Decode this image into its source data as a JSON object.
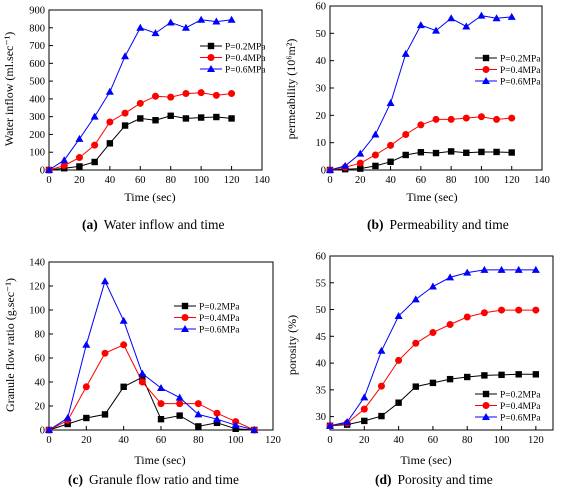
{
  "colors": {
    "s1": "#000000",
    "s2": "#ff0000",
    "s3": "#0000ff"
  },
  "chart_data": [
    {
      "type": "line",
      "panel": "a",
      "caption_label": "(a)",
      "caption_text": "Water inflow and time",
      "xlabel": "Time (sec)",
      "ylabel": "Water inflow (ml.sec⁻¹)",
      "xlim": [
        0,
        140
      ],
      "ylim": [
        0,
        900
      ],
      "xticks": [
        0,
        20,
        40,
        60,
        80,
        100,
        120,
        140
      ],
      "yticks": [
        0,
        100,
        200,
        300,
        400,
        500,
        600,
        700,
        800,
        900
      ],
      "xtick_labels": [
        "0",
        "20",
        "40",
        "60",
        "80",
        "100",
        "120",
        "140"
      ],
      "ytick_labels": [
        "0",
        "100",
        "200",
        "300",
        "400",
        "500",
        "600",
        "700",
        "800",
        "900"
      ],
      "legend": "right",
      "x": [
        0,
        10,
        20,
        30,
        40,
        50,
        60,
        70,
        80,
        90,
        100,
        110,
        120
      ],
      "series": [
        {
          "name": "P=0.2MPa",
          "marker": "square",
          "values": [
            0,
            10,
            20,
            45,
            150,
            250,
            290,
            280,
            305,
            290,
            295,
            298,
            290
          ]
        },
        {
          "name": "P=0.4MPa",
          "marker": "circle",
          "values": [
            0,
            25,
            70,
            140,
            270,
            320,
            375,
            415,
            410,
            430,
            435,
            420,
            430
          ]
        },
        {
          "name": "P=0.6MPa",
          "marker": "triangle",
          "values": [
            0,
            55,
            175,
            300,
            440,
            640,
            800,
            770,
            830,
            800,
            845,
            835,
            845
          ]
        }
      ]
    },
    {
      "type": "line",
      "panel": "b",
      "caption_label": "(b)",
      "caption_text": "Permeability and time",
      "xlabel": "Time (sec)",
      "ylabel": "permeability (10⁶m²)",
      "xlim": [
        0,
        140
      ],
      "ylim": [
        0,
        60
      ],
      "xticks": [
        0,
        20,
        40,
        60,
        80,
        100,
        120,
        140
      ],
      "yticks": [
        0,
        10,
        20,
        30,
        40,
        50,
        60
      ],
      "xtick_labels": [
        "0",
        "20",
        "40",
        "60",
        "80",
        "100",
        "120",
        "140"
      ],
      "ytick_labels": [
        "0",
        "10",
        "20",
        "30",
        "40",
        "50",
        "60"
      ],
      "legend": "right",
      "x": [
        0,
        10,
        20,
        30,
        40,
        50,
        60,
        70,
        80,
        90,
        100,
        110,
        120
      ],
      "series": [
        {
          "name": "P=0.2MPa",
          "marker": "square",
          "values": [
            0,
            0.3,
            0.5,
            1.5,
            3,
            5.5,
            6.5,
            6.2,
            6.8,
            6.3,
            6.6,
            6.6,
            6.4
          ]
        },
        {
          "name": "P=0.4MPa",
          "marker": "circle",
          "values": [
            0,
            1,
            2.5,
            5.5,
            9,
            13,
            16.5,
            18.5,
            18.5,
            19,
            19.5,
            18.5,
            19
          ]
        },
        {
          "name": "P=0.6MPa",
          "marker": "triangle",
          "values": [
            0,
            1.5,
            6,
            13,
            24.5,
            42.5,
            53,
            51,
            55.5,
            52.5,
            56.5,
            55.5,
            56
          ]
        }
      ]
    },
    {
      "type": "line",
      "panel": "c",
      "caption_label": "(c)",
      "caption_text": "Granule flow ratio and time",
      "xlabel": "Time (sec)",
      "ylabel": "Granule flow ratio (g.sec⁻¹)",
      "xlim": [
        0,
        120
      ],
      "ylim": [
        0,
        140
      ],
      "xticks": [
        0,
        20,
        40,
        60,
        80,
        100,
        120
      ],
      "yticks": [
        0,
        20,
        40,
        60,
        80,
        100,
        120,
        140
      ],
      "xtick_labels": [
        "0",
        "20",
        "40",
        "60",
        "80",
        "100",
        "120"
      ],
      "ytick_labels": [
        "0",
        "20",
        "40",
        "60",
        "80",
        "100",
        "120",
        "140"
      ],
      "legend": "top-right",
      "x": [
        0,
        10,
        20,
        30,
        40,
        50,
        60,
        70,
        80,
        90,
        100,
        110
      ],
      "series": [
        {
          "name": "P=0.2MPa",
          "marker": "square",
          "values": [
            0,
            5,
            10,
            13,
            36,
            44,
            9,
            12,
            3,
            6,
            1,
            0
          ]
        },
        {
          "name": "P=0.4MPa",
          "marker": "circle",
          "values": [
            0,
            8,
            36,
            64,
            71,
            40,
            22,
            22,
            22,
            14,
            7,
            0
          ]
        },
        {
          "name": "P=0.6MPa",
          "marker": "triangle",
          "values": [
            0,
            10,
            71,
            124,
            91,
            47,
            35,
            27,
            13,
            9,
            4,
            0
          ]
        }
      ]
    },
    {
      "type": "line",
      "panel": "d",
      "caption_label": "(d)",
      "caption_text": "Porosity and time",
      "xlabel": "Time (sec)",
      "ylabel": "porosity (%)",
      "xlim": [
        0,
        130
      ],
      "ylim": [
        27.5,
        60
      ],
      "xticks": [
        0,
        20,
        40,
        60,
        80,
        100,
        120
      ],
      "yticks": [
        30,
        35,
        40,
        45,
        50,
        55,
        60
      ],
      "xtick_labels": [
        "0",
        "20",
        "40",
        "60",
        "80",
        "100",
        "120"
      ],
      "ytick_labels": [
        "30",
        "35",
        "40",
        "45",
        "50",
        "55",
        "60"
      ],
      "legend": "bottom-right",
      "x": [
        0,
        10,
        20,
        30,
        40,
        50,
        60,
        70,
        80,
        90,
        100,
        110,
        120
      ],
      "series": [
        {
          "name": "P=0.2MPa",
          "marker": "square",
          "values": [
            28.3,
            28.5,
            29.2,
            30.1,
            32.6,
            35.6,
            36.3,
            37.0,
            37.4,
            37.7,
            37.8,
            37.9,
            37.9
          ]
        },
        {
          "name": "P=0.4MPa",
          "marker": "circle",
          "values": [
            28.3,
            28.8,
            31.4,
            35.7,
            40.5,
            43.7,
            45.7,
            47.2,
            48.6,
            49.4,
            49.9,
            49.9,
            49.9
          ]
        },
        {
          "name": "P=0.6MPa",
          "marker": "triangle",
          "values": [
            28.3,
            29.0,
            33.6,
            42.3,
            48.8,
            51.9,
            54.3,
            56.0,
            56.9,
            57.4,
            57.4,
            57.4,
            57.4
          ]
        }
      ]
    }
  ]
}
